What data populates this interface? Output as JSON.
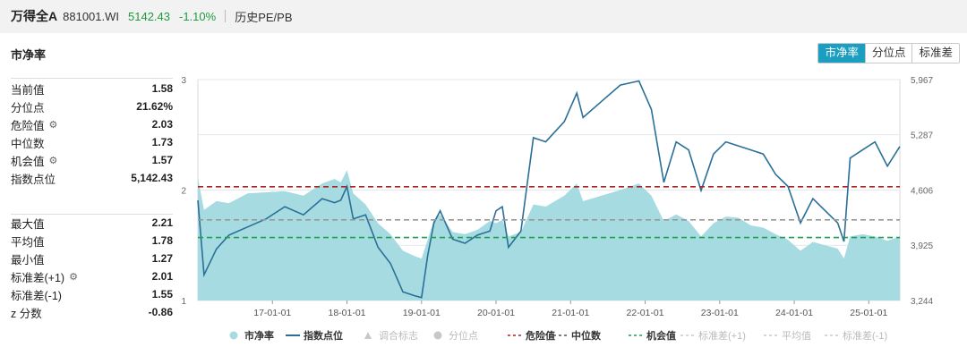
{
  "header": {
    "name": "万得全A",
    "code": "881001.WI",
    "price": "5142.43",
    "change": "-1.10%",
    "subtitle": "历史PE/PB"
  },
  "panel": {
    "title": "市净率"
  },
  "tabs": [
    {
      "label": "市净率",
      "active": true
    },
    {
      "label": "分位点",
      "active": false
    },
    {
      "label": "标准差",
      "active": false
    }
  ],
  "stats_top": [
    {
      "label": "当前值",
      "value": "1.58",
      "gear": false
    },
    {
      "label": "分位点",
      "value": "21.62%",
      "gear": false
    },
    {
      "label": "危险值",
      "value": "2.03",
      "gear": true
    },
    {
      "label": "中位数",
      "value": "1.73",
      "gear": false
    },
    {
      "label": "机会值",
      "value": "1.57",
      "gear": true
    },
    {
      "label": "指数点位",
      "value": "5,142.43",
      "gear": false
    }
  ],
  "stats_bottom": [
    {
      "label": "最大值",
      "value": "2.21",
      "gear": false
    },
    {
      "label": "平均值",
      "value": "1.78",
      "gear": false
    },
    {
      "label": "最小值",
      "value": "1.27",
      "gear": false
    },
    {
      "label": "标准差(+1)",
      "value": "2.01",
      "gear": true
    },
    {
      "label": "标准差(-1)",
      "value": "1.55",
      "gear": false
    },
    {
      "label": "z 分数",
      "value": "-0.86",
      "gear": false
    }
  ],
  "colors": {
    "area": "#a6dbe1",
    "line": "#2a6f97",
    "danger": "#b22222",
    "median": "#999999",
    "opportunity": "#1e9e50",
    "disabled": "#c8c8c8",
    "accent": "#1b9ec0",
    "positive_green": "#1c9c3c"
  },
  "chart_data": {
    "type": "area",
    "x_range": [
      "2016-01",
      "2025-06"
    ],
    "x_tick_labels": [
      "17-01-01",
      "18-01-01",
      "19-01-01",
      "20-01-01",
      "21-01-01",
      "22-01-01",
      "23-01-01",
      "24-01-01",
      "25-01-01"
    ],
    "y_left": {
      "ticks": [
        "3",
        "2",
        "1"
      ],
      "range": [
        1,
        3
      ]
    },
    "y_right": {
      "ticks": [
        "5,967",
        "5,287",
        "4,606",
        "3,925",
        "3,244"
      ],
      "range": [
        3244,
        5967
      ]
    },
    "reference_lines": [
      {
        "name": "危险值",
        "value": 2.03,
        "style": "dashed",
        "color": "#b22222"
      },
      {
        "name": "中位数",
        "value": 1.73,
        "style": "dashed",
        "color": "#999999"
      },
      {
        "name": "机会值",
        "value": 1.57,
        "style": "dashed",
        "color": "#1e9e50"
      }
    ],
    "series": [
      {
        "name": "市净率",
        "kind": "area",
        "points": [
          [
            "2016-01",
            2.11
          ],
          [
            "2016-02",
            1.82
          ],
          [
            "2016-04",
            1.9
          ],
          [
            "2016-06",
            1.88
          ],
          [
            "2016-09",
            1.97
          ],
          [
            "2016-12",
            1.98
          ],
          [
            "2017-03",
            1.99
          ],
          [
            "2017-06",
            1.95
          ],
          [
            "2017-09",
            2.06
          ],
          [
            "2017-11",
            2.1
          ],
          [
            "2017-12",
            2.07
          ],
          [
            "2018-01",
            2.18
          ],
          [
            "2018-02",
            1.97
          ],
          [
            "2018-04",
            1.87
          ],
          [
            "2018-06",
            1.7
          ],
          [
            "2018-08",
            1.6
          ],
          [
            "2018-10",
            1.45
          ],
          [
            "2018-12",
            1.4
          ],
          [
            "2019-01",
            1.38
          ],
          [
            "2019-02",
            1.55
          ],
          [
            "2019-03",
            1.73
          ],
          [
            "2019-04",
            1.78
          ],
          [
            "2019-06",
            1.62
          ],
          [
            "2019-08",
            1.6
          ],
          [
            "2019-10",
            1.64
          ],
          [
            "2019-12",
            1.72
          ],
          [
            "2020-01",
            1.7
          ],
          [
            "2020-02",
            1.73
          ],
          [
            "2020-03",
            1.58
          ],
          [
            "2020-05",
            1.62
          ],
          [
            "2020-07",
            1.87
          ],
          [
            "2020-09",
            1.85
          ],
          [
            "2020-12",
            1.95
          ],
          [
            "2021-02",
            2.06
          ],
          [
            "2021-03",
            1.9
          ],
          [
            "2021-06",
            1.95
          ],
          [
            "2021-09",
            2.0
          ],
          [
            "2021-12",
            2.06
          ],
          [
            "2022-02",
            1.95
          ],
          [
            "2022-04",
            1.72
          ],
          [
            "2022-06",
            1.78
          ],
          [
            "2022-08",
            1.72
          ],
          [
            "2022-10",
            1.58
          ],
          [
            "2022-12",
            1.7
          ],
          [
            "2023-02",
            1.76
          ],
          [
            "2023-04",
            1.75
          ],
          [
            "2023-06",
            1.68
          ],
          [
            "2023-08",
            1.66
          ],
          [
            "2023-10",
            1.6
          ],
          [
            "2023-12",
            1.55
          ],
          [
            "2024-02",
            1.45
          ],
          [
            "2024-04",
            1.53
          ],
          [
            "2024-06",
            1.5
          ],
          [
            "2024-08",
            1.47
          ],
          [
            "2024-09",
            1.38
          ],
          [
            "2024-10",
            1.58
          ],
          [
            "2024-12",
            1.6
          ],
          [
            "2025-02",
            1.58
          ],
          [
            "2025-04",
            1.54
          ],
          [
            "2025-06",
            1.58
          ]
        ]
      },
      {
        "name": "指数点位",
        "kind": "line",
        "points": [
          [
            "2016-01",
            4480
          ],
          [
            "2016-02",
            3560
          ],
          [
            "2016-04",
            3880
          ],
          [
            "2016-06",
            4050
          ],
          [
            "2016-09",
            4150
          ],
          [
            "2016-12",
            4250
          ],
          [
            "2017-03",
            4400
          ],
          [
            "2017-06",
            4300
          ],
          [
            "2017-09",
            4500
          ],
          [
            "2017-11",
            4450
          ],
          [
            "2017-12",
            4480
          ],
          [
            "2018-01",
            4650
          ],
          [
            "2018-02",
            4250
          ],
          [
            "2018-04",
            4300
          ],
          [
            "2018-06",
            3900
          ],
          [
            "2018-08",
            3700
          ],
          [
            "2018-10",
            3350
          ],
          [
            "2018-12",
            3300
          ],
          [
            "2019-01",
            3280
          ],
          [
            "2019-02",
            3800
          ],
          [
            "2019-03",
            4200
          ],
          [
            "2019-04",
            4350
          ],
          [
            "2019-06",
            4000
          ],
          [
            "2019-08",
            3950
          ],
          [
            "2019-10",
            4050
          ],
          [
            "2019-12",
            4100
          ],
          [
            "2020-01",
            4350
          ],
          [
            "2020-02",
            4400
          ],
          [
            "2020-03",
            3900
          ],
          [
            "2020-05",
            4100
          ],
          [
            "2020-07",
            5250
          ],
          [
            "2020-09",
            5200
          ],
          [
            "2020-12",
            5450
          ],
          [
            "2021-02",
            5800
          ],
          [
            "2021-03",
            5500
          ],
          [
            "2021-06",
            5700
          ],
          [
            "2021-09",
            5900
          ],
          [
            "2021-12",
            5950
          ],
          [
            "2022-02",
            5600
          ],
          [
            "2022-04",
            4700
          ],
          [
            "2022-06",
            5200
          ],
          [
            "2022-08",
            5100
          ],
          [
            "2022-10",
            4600
          ],
          [
            "2022-12",
            5050
          ],
          [
            "2023-02",
            5200
          ],
          [
            "2023-04",
            5150
          ],
          [
            "2023-06",
            5100
          ],
          [
            "2023-08",
            5050
          ],
          [
            "2023-10",
            4800
          ],
          [
            "2023-12",
            4650
          ],
          [
            "2024-02",
            4200
          ],
          [
            "2024-04",
            4500
          ],
          [
            "2024-06",
            4350
          ],
          [
            "2024-08",
            4200
          ],
          [
            "2024-09",
            3970
          ],
          [
            "2024-10",
            5000
          ],
          [
            "2024-12",
            5100
          ],
          [
            "2025-02",
            5200
          ],
          [
            "2025-04",
            4900
          ],
          [
            "2025-06",
            5142
          ]
        ]
      }
    ],
    "legend": [
      {
        "label": "市净率",
        "marker": "circle",
        "color": "#a6dbe1",
        "enabled": true
      },
      {
        "label": "指数点位",
        "marker": "line",
        "color": "#2a6f97",
        "enabled": true
      },
      {
        "label": "调合标志",
        "marker": "triangle",
        "color": "#c8c8c8",
        "enabled": false
      },
      {
        "label": "分位点",
        "marker": "circle",
        "color": "#c8c8c8",
        "enabled": false
      },
      {
        "label": "危险值",
        "marker": "dash",
        "color": "#b22222",
        "enabled": true
      },
      {
        "label": "中位数",
        "marker": "dash",
        "color": "#555555",
        "enabled": true
      },
      {
        "label": "机会值",
        "marker": "dash",
        "color": "#1e9e50",
        "enabled": true
      },
      {
        "label": "标准差(+1)",
        "marker": "dash",
        "color": "#c8c8c8",
        "enabled": false
      },
      {
        "label": "平均值",
        "marker": "dash",
        "color": "#c8c8c8",
        "enabled": false
      },
      {
        "label": "标准差(-1)",
        "marker": "dash",
        "color": "#c8c8c8",
        "enabled": false
      }
    ],
    "legend_position": "bottom"
  }
}
